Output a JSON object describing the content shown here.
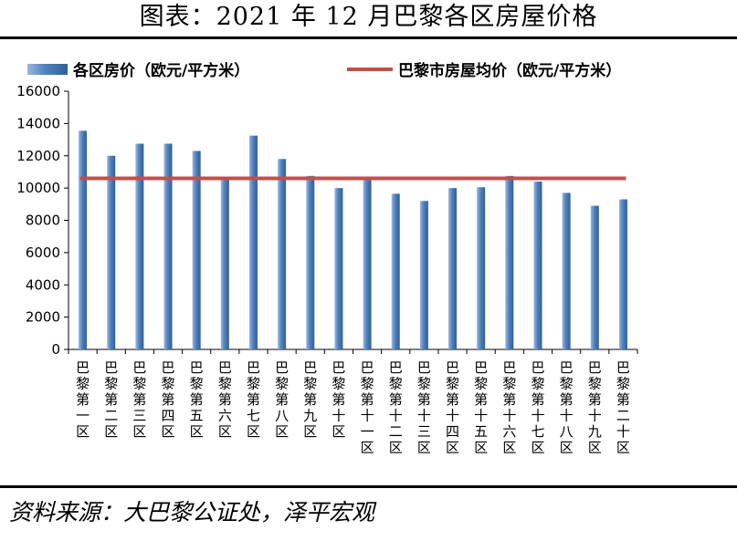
{
  "title": "图表：2021 年 12 月巴黎各区房屋价格",
  "source": "资料来源：大巴黎公证处，泽平宏观",
  "chart_data": {
    "type": "bar",
    "categories": [
      "巴黎第一区",
      "巴黎第二区",
      "巴黎第三区",
      "巴黎第四区",
      "巴黎第五区",
      "巴黎第六区",
      "巴黎第七区",
      "巴黎第八区",
      "巴黎第九区",
      "巴黎第十区",
      "巴黎第十一区",
      "巴黎第十二区",
      "巴黎第十三区",
      "巴黎第十四区",
      "巴黎第十五区",
      "巴黎第十六区",
      "巴黎第十七区",
      "巴黎第十八区",
      "巴黎第十九区",
      "巴黎第二十区"
    ],
    "series": [
      {
        "name": "各区房价（欧元/平方米）",
        "type": "bar",
        "color": "#4f81bd",
        "values": [
          13550,
          12000,
          12750,
          12750,
          12300,
          10600,
          13250,
          11800,
          10750,
          10000,
          10600,
          9650,
          9200,
          10000,
          10050,
          10750,
          10400,
          9700,
          8900,
          9300
        ]
      },
      {
        "name": "巴黎市房屋均价（欧元/平方米）",
        "type": "line",
        "color": "#c0504d",
        "value": 10600
      }
    ],
    "yticks": [
      0,
      2000,
      4000,
      6000,
      8000,
      10000,
      12000,
      14000,
      16000
    ],
    "ylim": [
      0,
      16000
    ],
    "legend": "top"
  }
}
